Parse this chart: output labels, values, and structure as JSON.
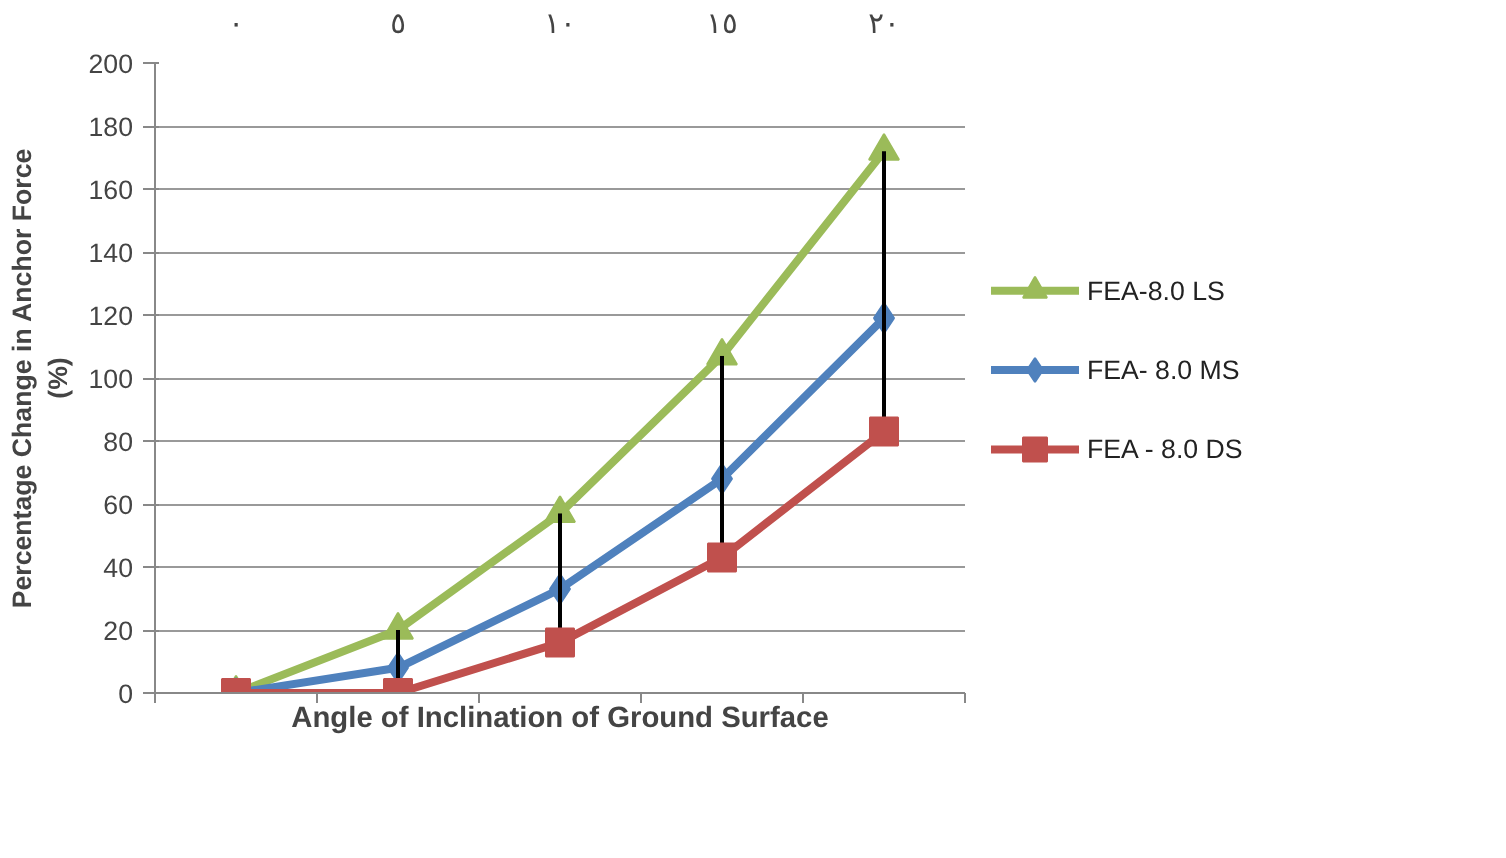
{
  "chart_data": {
    "type": "line",
    "categories": [
      "٠",
      "٥",
      "١٠",
      "١٥",
      "٢٠"
    ],
    "xlabel": "Angle of Inclination of Ground Surface",
    "ylabel": "Percentage Change in Anchor Force (%)",
    "ylim": [
      0,
      200
    ],
    "yticks": [
      0,
      20,
      40,
      60,
      80,
      100,
      120,
      140,
      160,
      180,
      200
    ],
    "grid": "y",
    "legend": "right",
    "series": [
      {
        "name": "FEA-8.0 LS",
        "color": "#9bbb59",
        "marker": "triangle",
        "values": [
          0,
          20,
          57,
          107,
          172
        ]
      },
      {
        "name": "FEA- 8.0 MS",
        "color": "#4f81bd",
        "marker": "diamond",
        "values": [
          0,
          8,
          33,
          68,
          119
        ]
      },
      {
        "name": "FEA - 8.0 DS",
        "color": "#c0504d",
        "marker": "square",
        "values": [
          0,
          0,
          16,
          43,
          83
        ],
        "errors": [
          null,
          [
            0,
            20
          ],
          [
            16,
            57
          ],
          [
            43,
            107
          ],
          [
            83,
            172
          ]
        ]
      }
    ]
  }
}
